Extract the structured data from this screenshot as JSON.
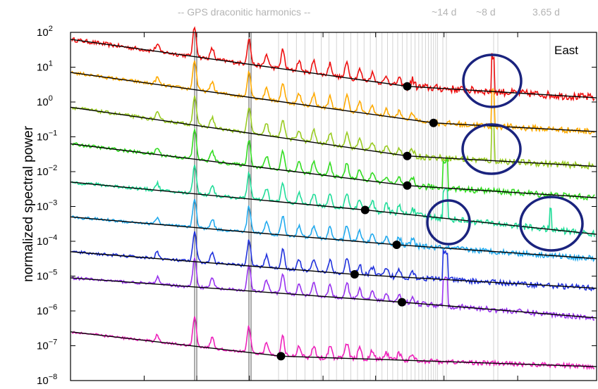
{
  "chart_data": {
    "type": "line",
    "title": "",
    "xlabel": "",
    "ylabel": "normalized spectral power",
    "y_scale": "log",
    "ylim_exponents": [
      -8,
      2
    ],
    "y_ticks": [
      {
        "base": "10",
        "exp": "2"
      },
      {
        "base": "10",
        "exp": "1"
      },
      {
        "base": "10",
        "exp": "0"
      },
      {
        "base": "10",
        "exp": "−1"
      },
      {
        "base": "10",
        "exp": "−2"
      },
      {
        "base": "10",
        "exp": "−3"
      },
      {
        "base": "10",
        "exp": "−4"
      },
      {
        "base": "10",
        "exp": "−5"
      },
      {
        "base": "10",
        "exp": "−6"
      },
      {
        "base": "10",
        "exp": "−7"
      },
      {
        "base": "10",
        "exp": "−8"
      }
    ],
    "top_labels": {
      "harmonics": "-- GPS draconitic harmonics --",
      "p14": "~14 d",
      "p8": "~8 d",
      "p365": "3.65 d"
    },
    "panel_label": "East",
    "grid": false,
    "series_colors": [
      "#ee1111",
      "#ffaa00",
      "#99cc22",
      "#33dd22",
      "#22dd99",
      "#22aaee",
      "#2233dd",
      "#1111cc",
      "#9933ee",
      "#ee22bb"
    ],
    "series": [
      {
        "color": "#ee1111",
        "start_log": 1.75,
        "end_log": 0.08,
        "noise": 0.1,
        "knee_frac": 0.64
      },
      {
        "color": "#ffaa00",
        "start_log": 0.75,
        "end_log": -0.8,
        "noise": 0.08,
        "knee_frac": 0.69
      },
      {
        "color": "#99cc22",
        "start_log": -0.3,
        "end_log": -1.85,
        "noise": 0.08,
        "knee_frac": 0.64
      },
      {
        "color": "#33dd22",
        "start_log": -1.3,
        "end_log": -2.7,
        "noise": 0.08,
        "knee_frac": 0.64
      },
      {
        "color": "#22dd99",
        "start_log": -2.55,
        "end_log": -3.7,
        "noise": 0.08,
        "knee_frac": 0.56
      },
      {
        "color": "#22aaee",
        "start_log": -3.3,
        "end_log": -4.5,
        "noise": 0.07,
        "knee_frac": 0.62
      },
      {
        "color": "#2233dd",
        "start_log": -4.4,
        "end_log": -5.25,
        "noise": 0.07,
        "knee_frac": 0.54
      },
      {
        "color": "#9933ee",
        "start_log": -5.2,
        "end_log": -6.2,
        "noise": 0.07,
        "knee_frac": 0.63
      },
      {
        "color": "#ee22bb",
        "start_log": -6.8,
        "end_log": -7.55,
        "noise": 0.06,
        "knee_frac": 0.4
      }
    ],
    "fit_lines": [
      {
        "start_log": 1.8,
        "knee_frac": 0.64,
        "knee_log": 0.45,
        "end_log": 0.12
      },
      {
        "start_log": 0.85,
        "knee_frac": 0.69,
        "knee_log": -0.6,
        "end_log": -0.85
      },
      {
        "start_log": -0.15,
        "knee_frac": 0.64,
        "knee_log": -1.55,
        "end_log": -1.85
      },
      {
        "start_log": -1.2,
        "knee_frac": 0.64,
        "knee_log": -2.4,
        "end_log": -2.75
      },
      {
        "start_log": -2.3,
        "knee_frac": 0.56,
        "knee_log": -3.1,
        "end_log": -3.8
      },
      {
        "start_log": -3.3,
        "knee_frac": 0.62,
        "knee_log": -4.1,
        "end_log": -4.5
      },
      {
        "start_log": -4.3,
        "knee_frac": 0.54,
        "knee_log": -4.95,
        "end_log": -5.35
      },
      {
        "start_log": -5.05,
        "knee_frac": 0.63,
        "knee_log": -5.75,
        "end_log": -6.2
      },
      {
        "start_log": -6.6,
        "knee_frac": 0.4,
        "knee_log": -7.3,
        "end_log": -7.6
      }
    ],
    "annotations": [
      {
        "type": "circle",
        "color": "#1a237e",
        "near": "~8 d peak, red/orange"
      },
      {
        "type": "circle",
        "color": "#1a237e",
        "near": "~8 d peak, yellow-green"
      },
      {
        "type": "circle",
        "color": "#1a237e",
        "near": "~14 d peak, teal"
      },
      {
        "type": "circle",
        "color": "#1a237e",
        "near": "3.65 d peak, teal"
      }
    ]
  }
}
